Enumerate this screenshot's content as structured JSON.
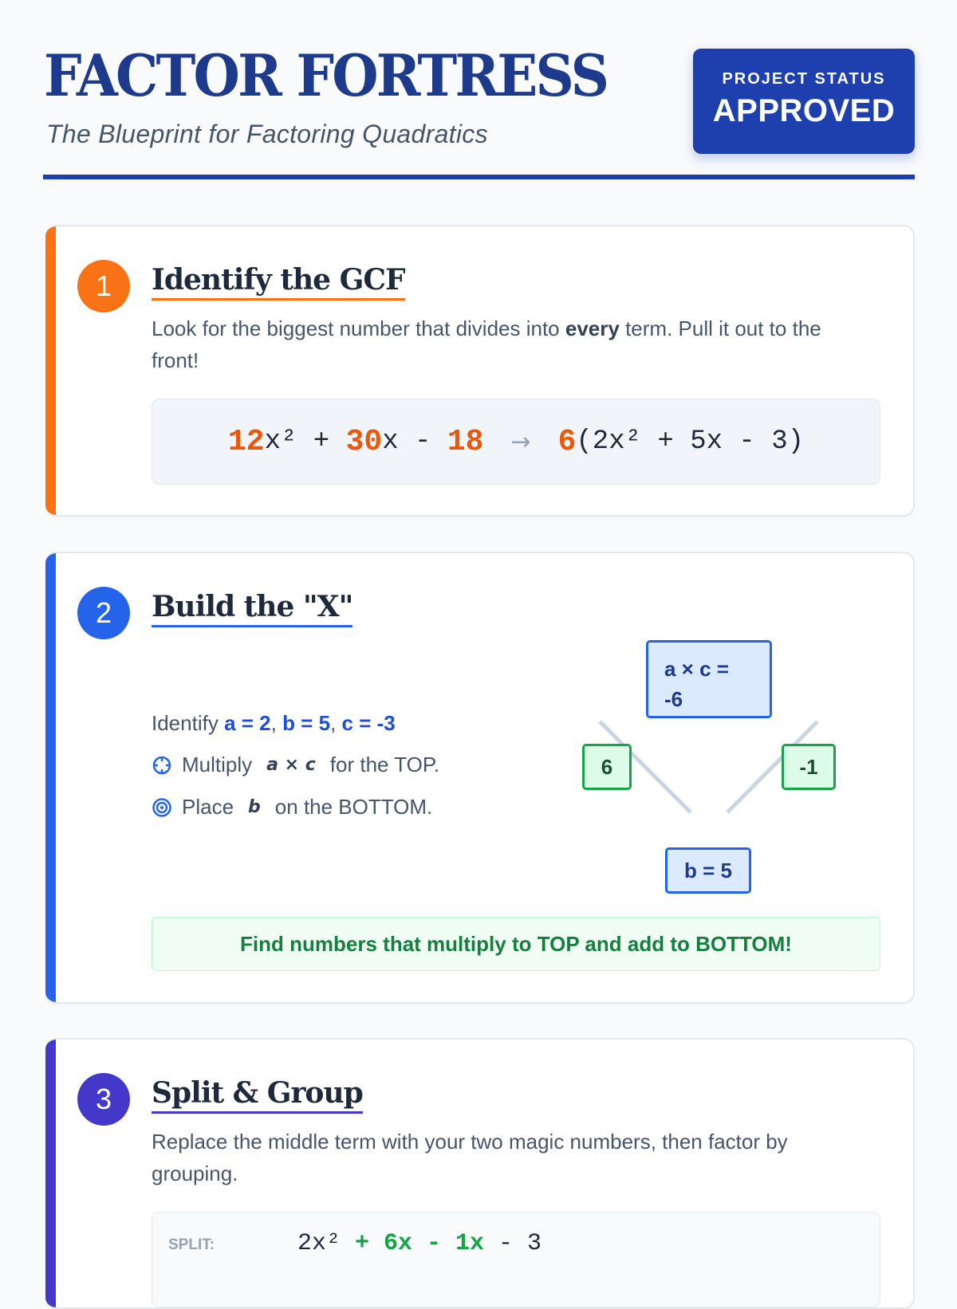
{
  "header": {
    "title": "FACTOR FORTRESS",
    "subtitle": "The Blueprint for Factoring Quadratics",
    "badge": {
      "label": "PROJECT STATUS",
      "value": "APPROVED"
    }
  },
  "colors": {
    "primary": "#1e40af",
    "step1": "#f97316",
    "step2": "#2563eb",
    "step3": "#4338ca",
    "green": "#16a34a"
  },
  "steps": [
    {
      "number": "1",
      "title": "Identify the GCF",
      "text_before": "Look for the biggest number that divides into ",
      "text_bold": "every",
      "text_after": " term. Pull it out to the front!",
      "formula": {
        "t1": "12",
        "t1v": "x²",
        "op1": " + ",
        "t2": "30",
        "t2v": "x",
        "op2": " - ",
        "t3": "18",
        "arrow": "→",
        "gcf": "6",
        "rest": "(2x² + 5x - 3)"
      }
    },
    {
      "number": "2",
      "title": "Build the \"X\"",
      "identify_label": "Identify ",
      "a": "a = 2",
      "b": "b = 5",
      "c": "c = -3",
      "sep": ", ",
      "multiply": {
        "before": "Multiply",
        "expr": "a × c",
        "after": "for the TOP.",
        "icon": "crosshair-icon"
      },
      "place": {
        "before": "Place",
        "expr": "b",
        "after": "on the BOTTOM.",
        "icon": "target-icon"
      },
      "diagram": {
        "top_label": "a × c =",
        "top_value": "-6",
        "left": "6",
        "right": "-1",
        "bottom": "b = 5"
      },
      "hint": "Find numbers that multiply to TOP and add to BOTTOM!"
    },
    {
      "number": "3",
      "title": "Split & Group",
      "text": "Replace the middle term with your two magic numbers, then factor by grouping.",
      "split": {
        "label": "SPLIT:",
        "t1": "2x²",
        "t2": " + 6x - 1x",
        "t3": " - 3"
      }
    }
  ]
}
